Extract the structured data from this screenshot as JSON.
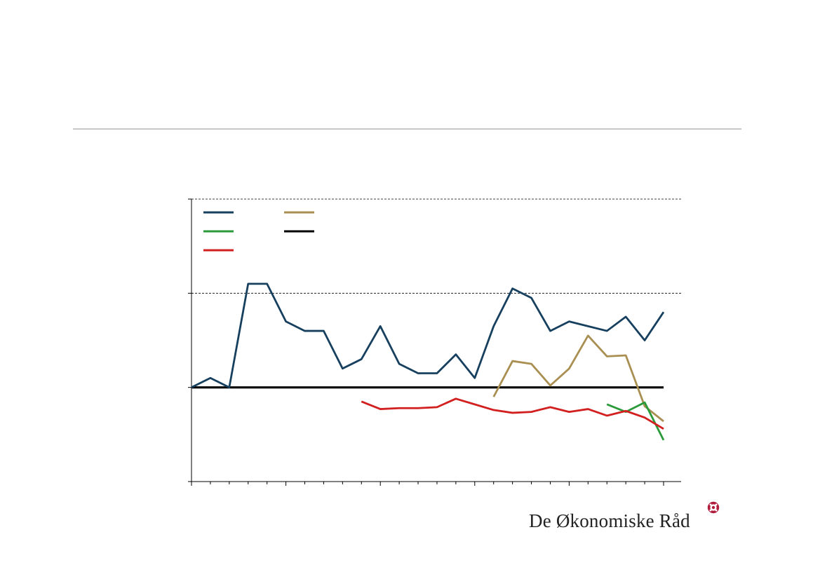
{
  "chart_data": {
    "type": "line",
    "title": "",
    "xlabel": "",
    "ylabel": "",
    "ylim": [
      -1,
      2
    ],
    "yticks": [
      -1,
      0,
      1,
      2
    ],
    "gridlines_y": [
      1,
      2
    ],
    "reference_line_y": 0,
    "x": [
      1,
      2,
      3,
      4,
      5,
      6,
      7,
      8,
      9,
      10,
      11,
      12,
      13,
      14,
      15,
      16,
      17,
      18,
      19,
      20,
      21,
      22,
      23,
      24,
      25,
      26
    ],
    "x_ticks_major": [
      1,
      6,
      11,
      16,
      21,
      26
    ],
    "legend": "top-left",
    "series": [
      {
        "key": "navy",
        "color": "#17405f",
        "values": [
          0.0,
          0.1,
          0.0,
          1.1,
          1.1,
          0.7,
          0.6,
          0.6,
          0.2,
          0.3,
          0.65,
          0.25,
          0.15,
          0.15,
          0.35,
          0.1,
          0.65,
          1.05,
          0.95,
          0.6,
          0.7,
          0.65,
          0.6,
          0.75,
          0.5,
          0.8
        ]
      },
      {
        "key": "gold",
        "color": "#a98f52",
        "values": [
          null,
          null,
          null,
          null,
          null,
          null,
          null,
          null,
          null,
          null,
          null,
          null,
          null,
          null,
          null,
          null,
          -0.1,
          0.28,
          0.25,
          0.02,
          0.2,
          0.55,
          0.33,
          0.34,
          -0.2,
          -0.36
        ]
      },
      {
        "key": "green",
        "color": "#2b9a3a",
        "values": [
          null,
          null,
          null,
          null,
          null,
          null,
          null,
          null,
          null,
          null,
          null,
          null,
          null,
          null,
          null,
          null,
          null,
          null,
          null,
          null,
          null,
          null,
          -0.18,
          -0.26,
          -0.16,
          -0.56
        ]
      },
      {
        "key": "black",
        "color": "#000000",
        "values": [
          0,
          0,
          0,
          0,
          0,
          0,
          0,
          0,
          0,
          0,
          0,
          0,
          0,
          0,
          0,
          0,
          0,
          0,
          0,
          0,
          0,
          0,
          0,
          0,
          0,
          0
        ]
      },
      {
        "key": "red",
        "color": "#d21f1f",
        "values": [
          null,
          null,
          null,
          null,
          null,
          null,
          null,
          null,
          null,
          -0.15,
          -0.23,
          -0.22,
          -0.22,
          -0.21,
          -0.12,
          -0.18,
          -0.24,
          -0.27,
          -0.26,
          -0.21,
          -0.26,
          -0.23,
          -0.3,
          -0.25,
          -0.32,
          -0.44
        ]
      }
    ]
  },
  "logo": {
    "text": "De Økonomiske Råd",
    "emblem_color": "#b01c3c"
  }
}
